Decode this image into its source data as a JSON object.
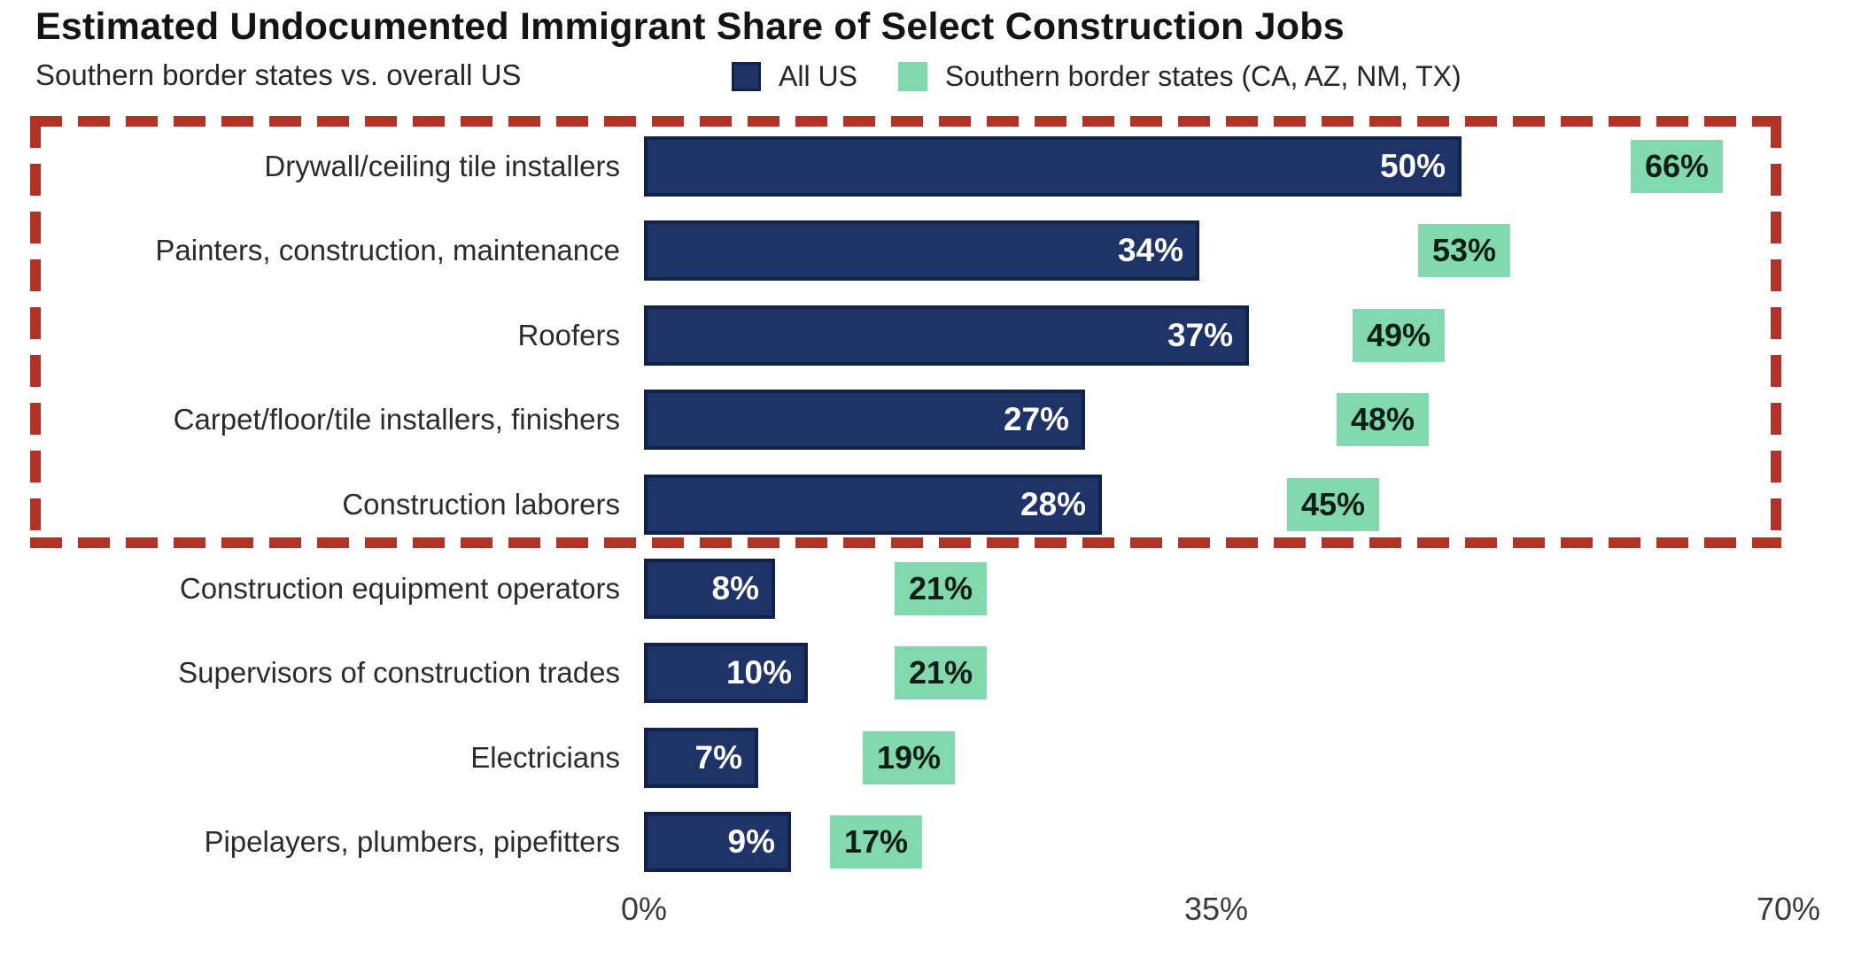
{
  "title": "Estimated Undocumented Immigrant Share of Select Construction Jobs",
  "subtitle": "Southern border states vs. overall US",
  "legend": {
    "all_us": "All US",
    "border_states": "Southern border states (CA, AZ, NM, TX)"
  },
  "colors": {
    "all_us": "#1e3469",
    "all_us_border": "#11214a",
    "border_states": "#82d9ad",
    "highlight_box": "#b23325",
    "bar_label": "#ffffff",
    "badge_label": "#0d1f17"
  },
  "chart_data": {
    "type": "bar",
    "orientation": "horizontal",
    "title": "Estimated Undocumented Immigrant Share of Select Construction Jobs",
    "subtitle": "Southern border states vs. overall US",
    "categories": [
      "Drywall/ceiling tile installers",
      "Painters, construction, maintenance",
      "Roofers",
      "Carpet/floor/tile installers, finishers",
      "Construction laborers",
      "Construction equipment operators",
      "Supervisors of construction trades",
      "Electricians",
      "Pipelayers, plumbers, pipefitters"
    ],
    "series": [
      {
        "name": "All US",
        "values": [
          50,
          34,
          37,
          27,
          28,
          8,
          10,
          7,
          9
        ]
      },
      {
        "name": "Southern border states (CA, AZ, NM, TX)",
        "values": [
          66,
          53,
          49,
          48,
          45,
          21,
          21,
          19,
          17
        ]
      }
    ],
    "value_suffix": "%",
    "xlim": [
      0,
      70
    ],
    "grid": false,
    "legend_position": "top",
    "highlight": {
      "style": "red dashed rectangle",
      "rows": [
        0,
        1,
        2,
        3,
        4
      ]
    }
  },
  "x_axis": {
    "ticks": [
      {
        "label": "0%",
        "value": 0
      },
      {
        "label": "35%",
        "value": 35
      },
      {
        "label": "70%",
        "value": 70
      }
    ]
  }
}
